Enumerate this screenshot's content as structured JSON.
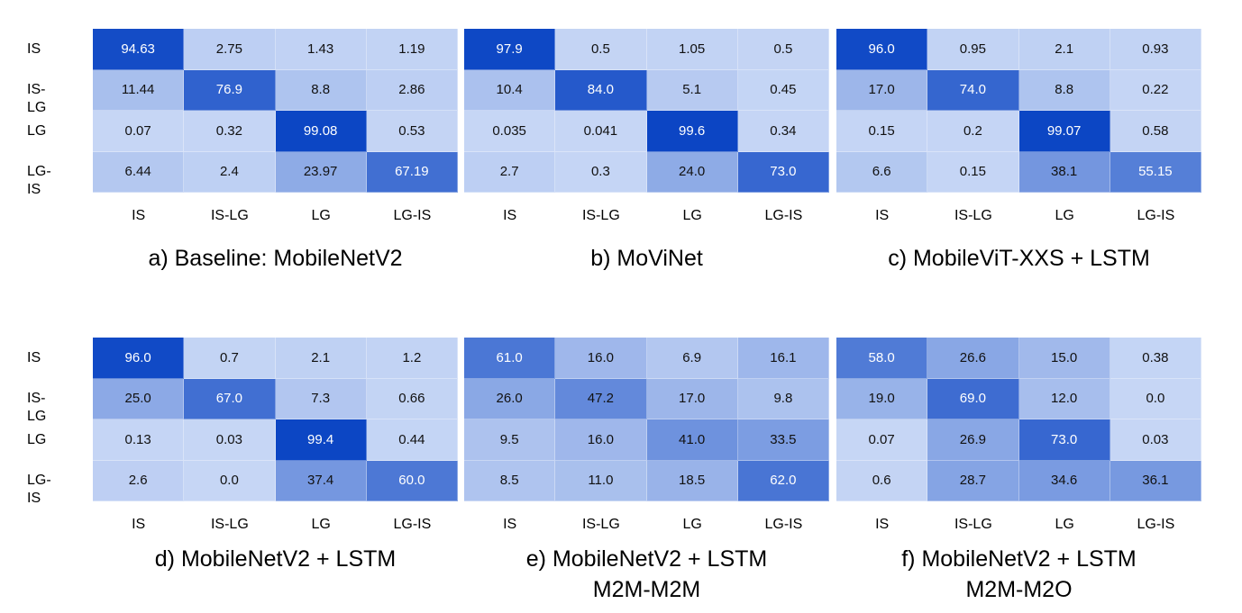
{
  "chart_data": [
    {
      "type": "heatmap",
      "title": "a) Baseline: MobileNetV2",
      "rows": [
        "IS",
        "IS-LG",
        "LG",
        "LG-IS"
      ],
      "columns": [
        "IS",
        "IS-LG",
        "LG",
        "LG-IS"
      ],
      "values": [
        [
          "94.63",
          "2.75",
          "1.43",
          "1.19"
        ],
        [
          "11.44",
          "76.9",
          "8.8",
          "2.86"
        ],
        [
          "0.07",
          "0.32",
          "99.08",
          "0.53"
        ],
        [
          "6.44",
          "2.4",
          "23.97",
          "67.19"
        ]
      ]
    },
    {
      "type": "heatmap",
      "title": "b) MoViNet",
      "rows": [
        "IS",
        "IS-LG",
        "LG",
        "LG-IS"
      ],
      "columns": [
        "IS",
        "IS-LG",
        "LG",
        "LG-IS"
      ],
      "values": [
        [
          "97.9",
          "0.5",
          "1.05",
          "0.5"
        ],
        [
          "10.4",
          "84.0",
          "5.1",
          "0.45"
        ],
        [
          "0.035",
          "0.041",
          "99.6",
          "0.34"
        ],
        [
          "2.7",
          "0.3",
          "24.0",
          "73.0"
        ]
      ]
    },
    {
      "type": "heatmap",
      "title": "c) MobileViT-XXS + LSTM",
      "rows": [
        "IS",
        "IS-LG",
        "LG",
        "LG-IS"
      ],
      "columns": [
        "IS",
        "IS-LG",
        "LG",
        "LG-IS"
      ],
      "values": [
        [
          "96.0",
          "0.95",
          "2.1",
          "0.93"
        ],
        [
          "17.0",
          "74.0",
          "8.8",
          "0.22"
        ],
        [
          "0.15",
          "0.2",
          "99.07",
          "0.58"
        ],
        [
          "6.6",
          "0.15",
          "38.1",
          "55.15"
        ]
      ]
    },
    {
      "type": "heatmap",
      "title": "d) MobileNetV2 + LSTM",
      "rows": [
        "IS",
        "IS-LG",
        "LG",
        "LG-IS"
      ],
      "columns": [
        "IS",
        "IS-LG",
        "LG",
        "LG-IS"
      ],
      "values": [
        [
          "96.0",
          "0.7",
          "2.1",
          "1.2"
        ],
        [
          "25.0",
          "67.0",
          "7.3",
          "0.66"
        ],
        [
          "0.13",
          "0.03",
          "99.4",
          "0.44"
        ],
        [
          "2.6",
          "0.0",
          "37.4",
          "60.0"
        ]
      ]
    },
    {
      "type": "heatmap",
      "title": "e) MobileNetV2 + LSTM\nM2M-M2M",
      "rows": [
        "IS",
        "IS-LG",
        "LG",
        "LG-IS"
      ],
      "columns": [
        "IS",
        "IS-LG",
        "LG",
        "LG-IS"
      ],
      "values": [
        [
          "61.0",
          "16.0",
          "6.9",
          "16.1"
        ],
        [
          "26.0",
          "47.2",
          "17.0",
          "9.8"
        ],
        [
          "9.5",
          "16.0",
          "41.0",
          "33.5"
        ],
        [
          "8.5",
          "11.0",
          "18.5",
          "62.0"
        ]
      ]
    },
    {
      "type": "heatmap",
      "title": "f) MobileNetV2 + LSTM\nM2M-M2O",
      "rows": [
        "IS",
        "IS-LG",
        "LG",
        "LG-IS"
      ],
      "columns": [
        "IS",
        "IS-LG",
        "LG",
        "LG-IS"
      ],
      "values": [
        [
          "58.0",
          "26.6",
          "15.0",
          "0.38"
        ],
        [
          "19.0",
          "69.0",
          "12.0",
          "0.0"
        ],
        [
          "0.07",
          "26.9",
          "73.0",
          "0.03"
        ],
        [
          "0.6",
          "28.7",
          "34.6",
          "36.1"
        ]
      ]
    }
  ],
  "colors": {
    "low": "#c6d6f5",
    "high": "#0b45c4",
    "text_dark": "#111111",
    "text_light": "#ffffff"
  }
}
